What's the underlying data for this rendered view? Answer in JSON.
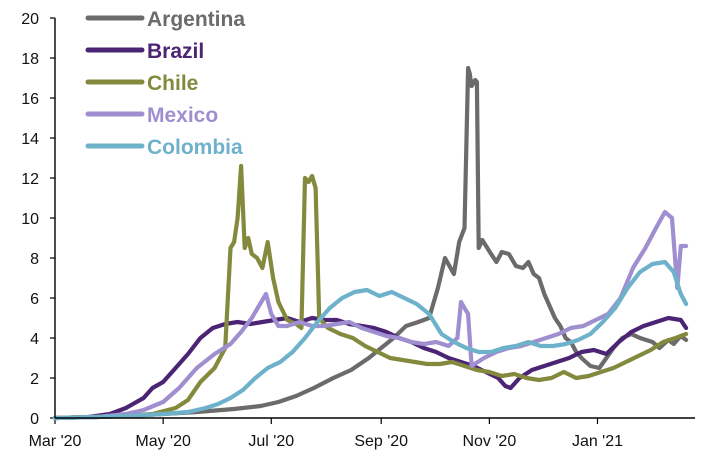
{
  "chart_data": {
    "type": "line",
    "title": "",
    "xlabel": "",
    "ylabel": "",
    "ylim": [
      0,
      20
    ],
    "yticks": [
      0,
      2,
      4,
      6,
      8,
      10,
      12,
      14,
      16,
      18,
      20
    ],
    "ytick_labels": [
      "0",
      "2",
      "4",
      "6",
      "8",
      "10",
      "12",
      "14",
      "16",
      "18",
      "20"
    ],
    "xlim": [
      "2020-03-01",
      "2021-02-25"
    ],
    "xticks": [
      "2020-03-01",
      "2020-05-01",
      "2020-07-01",
      "2020-09-01",
      "2020-11-01",
      "2021-01-01"
    ],
    "xtick_labels": [
      "Mar '20",
      "May '20",
      "Jul '20",
      "Sep '20",
      "Nov '20",
      "Jan '21"
    ],
    "grid": false,
    "legend_position": "top-left",
    "series": [
      {
        "name": "Argentina",
        "color": "#6b6b6b",
        "points": [
          [
            "2020-03-01",
            0
          ],
          [
            "2020-03-25",
            0.05
          ],
          [
            "2020-04-15",
            0.12
          ],
          [
            "2020-05-01",
            0.2
          ],
          [
            "2020-05-20",
            0.3
          ],
          [
            "2020-06-10",
            0.45
          ],
          [
            "2020-06-25",
            0.6
          ],
          [
            "2020-07-05",
            0.8
          ],
          [
            "2020-07-15",
            1.1
          ],
          [
            "2020-07-25",
            1.5
          ],
          [
            "2020-08-05",
            2.0
          ],
          [
            "2020-08-15",
            2.4
          ],
          [
            "2020-08-25",
            3.0
          ],
          [
            "2020-09-01",
            3.5
          ],
          [
            "2020-09-08",
            4.0
          ],
          [
            "2020-09-15",
            4.6
          ],
          [
            "2020-09-22",
            4.8
          ],
          [
            "2020-09-28",
            5.0
          ],
          [
            "2020-10-03",
            6.5
          ],
          [
            "2020-10-07",
            8.0
          ],
          [
            "2020-10-12",
            7.2
          ],
          [
            "2020-10-15",
            8.8
          ],
          [
            "2020-10-18",
            9.5
          ],
          [
            "2020-10-20",
            17.5
          ],
          [
            "2020-10-21",
            17.2
          ],
          [
            "2020-10-22",
            16.6
          ],
          [
            "2020-10-24",
            16.9
          ],
          [
            "2020-10-25",
            16.8
          ],
          [
            "2020-10-26",
            8.5
          ],
          [
            "2020-10-28",
            8.9
          ],
          [
            "2020-11-02",
            8.2
          ],
          [
            "2020-11-05",
            7.8
          ],
          [
            "2020-11-08",
            8.3
          ],
          [
            "2020-11-12",
            8.2
          ],
          [
            "2020-11-16",
            7.6
          ],
          [
            "2020-11-20",
            7.5
          ],
          [
            "2020-11-23",
            7.8
          ],
          [
            "2020-11-26",
            7.2
          ],
          [
            "2020-11-29",
            7.0
          ],
          [
            "2020-12-02",
            6.2
          ],
          [
            "2020-12-05",
            5.6
          ],
          [
            "2020-12-08",
            5.0
          ],
          [
            "2020-12-11",
            4.6
          ],
          [
            "2020-12-14",
            4.0
          ],
          [
            "2020-12-17",
            3.8
          ],
          [
            "2020-12-20",
            3.3
          ],
          [
            "2020-12-23",
            3.0
          ],
          [
            "2020-12-28",
            2.6
          ],
          [
            "2021-01-02",
            2.5
          ],
          [
            "2021-01-06",
            3.0
          ],
          [
            "2021-01-10",
            3.5
          ],
          [
            "2021-01-15",
            4.0
          ],
          [
            "2021-01-20",
            4.2
          ],
          [
            "2021-01-25",
            4.0
          ],
          [
            "2021-02-01",
            3.8
          ],
          [
            "2021-02-05",
            3.5
          ],
          [
            "2021-02-10",
            3.9
          ],
          [
            "2021-02-13",
            3.7
          ],
          [
            "2021-02-17",
            4.1
          ],
          [
            "2021-02-20",
            3.9
          ]
        ]
      },
      {
        "name": "Brazil",
        "color": "#4b2474",
        "points": [
          [
            "2020-03-01",
            0
          ],
          [
            "2020-03-20",
            0.05
          ],
          [
            "2020-04-01",
            0.2
          ],
          [
            "2020-04-10",
            0.5
          ],
          [
            "2020-04-20",
            1.0
          ],
          [
            "2020-04-25",
            1.5
          ],
          [
            "2020-05-01",
            1.8
          ],
          [
            "2020-05-08",
            2.5
          ],
          [
            "2020-05-15",
            3.2
          ],
          [
            "2020-05-22",
            4.0
          ],
          [
            "2020-05-29",
            4.5
          ],
          [
            "2020-06-05",
            4.7
          ],
          [
            "2020-06-12",
            4.8
          ],
          [
            "2020-06-19",
            4.7
          ],
          [
            "2020-06-26",
            4.8
          ],
          [
            "2020-07-03",
            4.9
          ],
          [
            "2020-07-10",
            5.0
          ],
          [
            "2020-07-17",
            4.8
          ],
          [
            "2020-07-24",
            5.0
          ],
          [
            "2020-07-31",
            4.9
          ],
          [
            "2020-08-07",
            4.9
          ],
          [
            "2020-08-14",
            4.7
          ],
          [
            "2020-08-21",
            4.6
          ],
          [
            "2020-08-28",
            4.5
          ],
          [
            "2020-09-04",
            4.3
          ],
          [
            "2020-09-11",
            4.0
          ],
          [
            "2020-09-18",
            3.8
          ],
          [
            "2020-09-25",
            3.5
          ],
          [
            "2020-10-02",
            3.3
          ],
          [
            "2020-10-09",
            3.0
          ],
          [
            "2020-10-16",
            2.8
          ],
          [
            "2020-10-23",
            2.6
          ],
          [
            "2020-10-30",
            2.3
          ],
          [
            "2020-11-06",
            2.0
          ],
          [
            "2020-11-10",
            1.6
          ],
          [
            "2020-11-13",
            1.5
          ],
          [
            "2020-11-18",
            2.0
          ],
          [
            "2020-11-25",
            2.4
          ],
          [
            "2020-12-02",
            2.6
          ],
          [
            "2020-12-09",
            2.8
          ],
          [
            "2020-12-16",
            3.0
          ],
          [
            "2020-12-23",
            3.3
          ],
          [
            "2020-12-30",
            3.4
          ],
          [
            "2021-01-06",
            3.2
          ],
          [
            "2021-01-13",
            3.8
          ],
          [
            "2021-01-20",
            4.3
          ],
          [
            "2021-01-27",
            4.6
          ],
          [
            "2021-02-03",
            4.8
          ],
          [
            "2021-02-10",
            5.0
          ],
          [
            "2021-02-17",
            4.9
          ],
          [
            "2021-02-20",
            4.5
          ]
        ]
      },
      {
        "name": "Chile",
        "color": "#848a3d",
        "points": [
          [
            "2020-03-01",
            0
          ],
          [
            "2020-03-20",
            0.05
          ],
          [
            "2020-04-10",
            0.1
          ],
          [
            "2020-04-25",
            0.2
          ],
          [
            "2020-05-08",
            0.5
          ],
          [
            "2020-05-15",
            0.9
          ],
          [
            "2020-05-22",
            1.8
          ],
          [
            "2020-05-30",
            2.5
          ],
          [
            "2020-06-05",
            3.5
          ],
          [
            "2020-06-08",
            8.5
          ],
          [
            "2020-06-10",
            8.8
          ],
          [
            "2020-06-12",
            10.0
          ],
          [
            "2020-06-14",
            12.6
          ],
          [
            "2020-06-16",
            8.5
          ],
          [
            "2020-06-18",
            9.0
          ],
          [
            "2020-06-20",
            8.2
          ],
          [
            "2020-06-23",
            8.0
          ],
          [
            "2020-06-26",
            7.5
          ],
          [
            "2020-06-29",
            8.8
          ],
          [
            "2020-07-02",
            7.0
          ],
          [
            "2020-07-05",
            5.8
          ],
          [
            "2020-07-10",
            4.9
          ],
          [
            "2020-07-15",
            4.7
          ],
          [
            "2020-07-18",
            4.5
          ],
          [
            "2020-07-20",
            12.0
          ],
          [
            "2020-07-22",
            11.8
          ],
          [
            "2020-07-24",
            12.1
          ],
          [
            "2020-07-26",
            11.5
          ],
          [
            "2020-07-28",
            5.0
          ],
          [
            "2020-08-02",
            4.5
          ],
          [
            "2020-08-09",
            4.2
          ],
          [
            "2020-08-16",
            4.0
          ],
          [
            "2020-08-23",
            3.6
          ],
          [
            "2020-08-30",
            3.3
          ],
          [
            "2020-09-06",
            3.0
          ],
          [
            "2020-09-13",
            2.9
          ],
          [
            "2020-09-20",
            2.8
          ],
          [
            "2020-09-27",
            2.7
          ],
          [
            "2020-10-04",
            2.7
          ],
          [
            "2020-10-11",
            2.8
          ],
          [
            "2020-10-18",
            2.6
          ],
          [
            "2020-10-25",
            2.4
          ],
          [
            "2020-11-01",
            2.3
          ],
          [
            "2020-11-08",
            2.1
          ],
          [
            "2020-11-15",
            2.2
          ],
          [
            "2020-11-22",
            2.0
          ],
          [
            "2020-11-29",
            1.9
          ],
          [
            "2020-12-06",
            2.0
          ],
          [
            "2020-12-13",
            2.3
          ],
          [
            "2020-12-20",
            2.0
          ],
          [
            "2020-12-27",
            2.1
          ],
          [
            "2021-01-03",
            2.3
          ],
          [
            "2021-01-10",
            2.5
          ],
          [
            "2021-01-17",
            2.8
          ],
          [
            "2021-01-24",
            3.1
          ],
          [
            "2021-01-31",
            3.4
          ],
          [
            "2021-02-07",
            3.8
          ],
          [
            "2021-02-14",
            4.0
          ],
          [
            "2021-02-20",
            4.2
          ]
        ]
      },
      {
        "name": "Mexico",
        "color": "#a08fd0",
        "points": [
          [
            "2020-03-01",
            0
          ],
          [
            "2020-03-25",
            0.05
          ],
          [
            "2020-04-10",
            0.2
          ],
          [
            "2020-04-20",
            0.4
          ],
          [
            "2020-05-01",
            0.8
          ],
          [
            "2020-05-10",
            1.5
          ],
          [
            "2020-05-20",
            2.5
          ],
          [
            "2020-05-30",
            3.2
          ],
          [
            "2020-06-08",
            3.7
          ],
          [
            "2020-06-14",
            4.3
          ],
          [
            "2020-06-20",
            5.0
          ],
          [
            "2020-06-24",
            5.6
          ],
          [
            "2020-06-28",
            6.2
          ],
          [
            "2020-07-01",
            5.2
          ],
          [
            "2020-07-05",
            4.6
          ],
          [
            "2020-07-10",
            4.6
          ],
          [
            "2020-07-17",
            4.8
          ],
          [
            "2020-07-24",
            4.6
          ],
          [
            "2020-07-31",
            4.6
          ],
          [
            "2020-08-07",
            4.7
          ],
          [
            "2020-08-14",
            4.8
          ],
          [
            "2020-08-21",
            4.5
          ],
          [
            "2020-08-28",
            4.3
          ],
          [
            "2020-09-04",
            4.1
          ],
          [
            "2020-09-11",
            4.0
          ],
          [
            "2020-09-18",
            3.8
          ],
          [
            "2020-09-25",
            3.7
          ],
          [
            "2020-10-02",
            3.8
          ],
          [
            "2020-10-09",
            3.6
          ],
          [
            "2020-10-14",
            4.0
          ],
          [
            "2020-10-16",
            5.8
          ],
          [
            "2020-10-18",
            5.5
          ],
          [
            "2020-10-20",
            5.2
          ],
          [
            "2020-10-22",
            2.6
          ],
          [
            "2020-10-29",
            3.0
          ],
          [
            "2020-11-05",
            3.3
          ],
          [
            "2020-11-12",
            3.5
          ],
          [
            "2020-11-19",
            3.6
          ],
          [
            "2020-11-26",
            3.8
          ],
          [
            "2020-12-03",
            4.0
          ],
          [
            "2020-12-10",
            4.2
          ],
          [
            "2020-12-17",
            4.5
          ],
          [
            "2020-12-24",
            4.6
          ],
          [
            "2020-12-31",
            4.9
          ],
          [
            "2021-01-07",
            5.2
          ],
          [
            "2021-01-14",
            6.0
          ],
          [
            "2021-01-21",
            7.5
          ],
          [
            "2021-01-28",
            8.5
          ],
          [
            "2021-02-03",
            9.5
          ],
          [
            "2021-02-08",
            10.3
          ],
          [
            "2021-02-12",
            10.0
          ],
          [
            "2021-02-15",
            6.5
          ],
          [
            "2021-02-17",
            8.6
          ],
          [
            "2021-02-20",
            8.6
          ]
        ]
      },
      {
        "name": "Colombia",
        "color": "#6eb1cb",
        "points": [
          [
            "2020-03-01",
            0
          ],
          [
            "2020-03-25",
            0.05
          ],
          [
            "2020-04-10",
            0.1
          ],
          [
            "2020-04-20",
            0.15
          ],
          [
            "2020-05-01",
            0.2
          ],
          [
            "2020-05-15",
            0.3
          ],
          [
            "2020-05-25",
            0.5
          ],
          [
            "2020-06-01",
            0.7
          ],
          [
            "2020-06-08",
            1.0
          ],
          [
            "2020-06-15",
            1.4
          ],
          [
            "2020-06-22",
            2.0
          ],
          [
            "2020-06-29",
            2.5
          ],
          [
            "2020-07-06",
            2.8
          ],
          [
            "2020-07-13",
            3.3
          ],
          [
            "2020-07-20",
            4.0
          ],
          [
            "2020-07-27",
            4.8
          ],
          [
            "2020-08-03",
            5.5
          ],
          [
            "2020-08-10",
            6.0
          ],
          [
            "2020-08-17",
            6.3
          ],
          [
            "2020-08-24",
            6.4
          ],
          [
            "2020-08-31",
            6.1
          ],
          [
            "2020-09-07",
            6.3
          ],
          [
            "2020-09-14",
            6.0
          ],
          [
            "2020-09-21",
            5.7
          ],
          [
            "2020-09-28",
            5.2
          ],
          [
            "2020-10-05",
            4.2
          ],
          [
            "2020-10-12",
            3.8
          ],
          [
            "2020-10-19",
            3.5
          ],
          [
            "2020-10-26",
            3.3
          ],
          [
            "2020-11-02",
            3.3
          ],
          [
            "2020-11-09",
            3.5
          ],
          [
            "2020-11-16",
            3.6
          ],
          [
            "2020-11-23",
            3.8
          ],
          [
            "2020-11-30",
            3.6
          ],
          [
            "2020-12-07",
            3.6
          ],
          [
            "2020-12-14",
            3.7
          ],
          [
            "2020-12-21",
            3.9
          ],
          [
            "2020-12-28",
            4.2
          ],
          [
            "2021-01-04",
            4.8
          ],
          [
            "2021-01-11",
            5.5
          ],
          [
            "2021-01-18",
            6.5
          ],
          [
            "2021-01-25",
            7.3
          ],
          [
            "2021-02-01",
            7.7
          ],
          [
            "2021-02-08",
            7.8
          ],
          [
            "2021-02-13",
            7.3
          ],
          [
            "2021-02-17",
            6.2
          ],
          [
            "2021-02-20",
            5.7
          ]
        ]
      }
    ]
  }
}
